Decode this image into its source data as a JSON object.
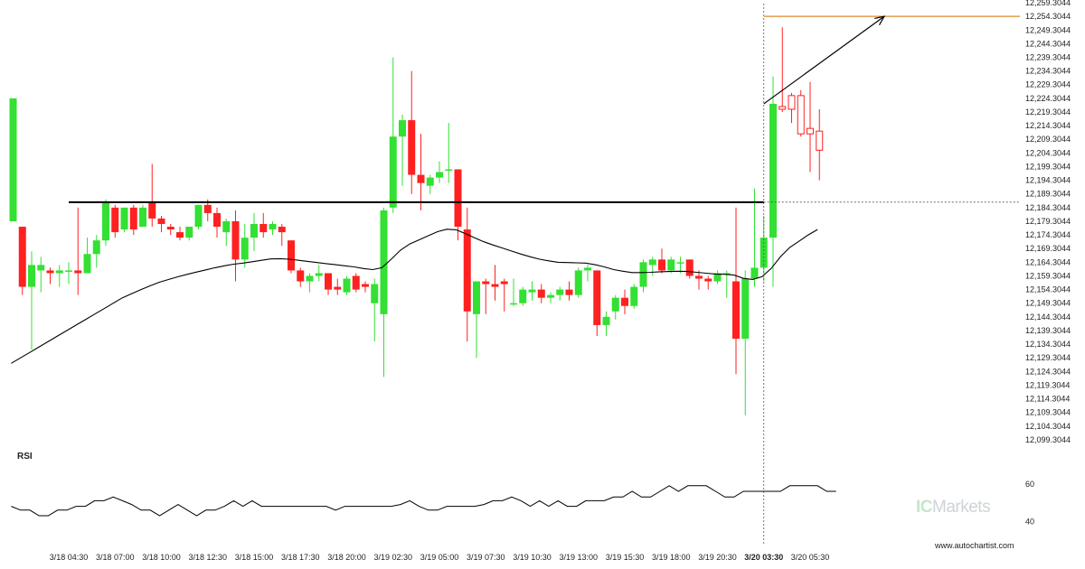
{
  "chart_data": [
    {
      "type": "candlestick",
      "series_name": "",
      "y_ticks": [
        "12,099.3044",
        "12,104.3044",
        "12,109.3044",
        "12,114.3044",
        "12,119.3044",
        "12,124.3044",
        "12,129.3044",
        "12,134.3044",
        "12,139.3044",
        "12,144.3044",
        "12,149.3044",
        "12,154.3044",
        "12,159.3044",
        "12,164.3044",
        "12,169.3044",
        "12,174.3044",
        "12,179.3044",
        "12,184.3044",
        "12,189.3044",
        "12,194.3044",
        "12,199.3044",
        "12,204.3044",
        "12,209.3044",
        "12,214.3044",
        "12,219.3044",
        "12,224.3044",
        "12,229.3044",
        "12,234.3044",
        "12,239.3044",
        "12,244.3044",
        "12,249.3044",
        "12,254.3044",
        "12,259.3044"
      ],
      "ylim": [
        12097.3,
        12260.3
      ],
      "x_ticks": [
        {
          "index": 6,
          "label": "3/18 04:30",
          "bold": false
        },
        {
          "index": 11,
          "label": "3/18 07:00",
          "bold": false
        },
        {
          "index": 16,
          "label": "3/18 10:00",
          "bold": false
        },
        {
          "index": 21,
          "label": "3/18 12:30",
          "bold": false
        },
        {
          "index": 26,
          "label": "3/18 15:00",
          "bold": false
        },
        {
          "index": 31,
          "label": "3/18 17:30",
          "bold": false
        },
        {
          "index": 36,
          "label": "3/18 20:00",
          "bold": false
        },
        {
          "index": 41,
          "label": "3/19 02:30",
          "bold": false
        },
        {
          "index": 46,
          "label": "3/19 05:00",
          "bold": false
        },
        {
          "index": 51,
          "label": "3/19 07:30",
          "bold": false
        },
        {
          "index": 56,
          "label": "3/19 10:30",
          "bold": false
        },
        {
          "index": 61,
          "label": "3/19 13:00",
          "bold": false
        },
        {
          "index": 66,
          "label": "3/19 15:30",
          "bold": false
        },
        {
          "index": 71,
          "label": "3/19 18:00",
          "bold": false
        },
        {
          "index": 76,
          "label": "3/19 20:30",
          "bold": false
        },
        {
          "index": 81,
          "label": "3/20 03:30",
          "bold": true
        },
        {
          "index": 86,
          "label": "3/20 05:30",
          "bold": false
        }
      ],
      "candles": [
        {
          "o": 12179.3,
          "h": 12224.3,
          "l": 12179.3,
          "c": 12224.3,
          "hollow": false
        },
        {
          "o": 12177.3,
          "h": 12177.3,
          "l": 12152.3,
          "c": 12155.3,
          "hollow": false
        },
        {
          "o": 12155.3,
          "h": 12168.3,
          "l": 12132.3,
          "c": 12163.3,
          "hollow": false
        },
        {
          "o": 12161.3,
          "h": 12166.3,
          "l": 12153.3,
          "c": 12163.3,
          "hollow": false
        },
        {
          "o": 12161.3,
          "h": 12162.3,
          "l": 12156.3,
          "c": 12160.3,
          "hollow": false
        },
        {
          "o": 12160.3,
          "h": 12163.3,
          "l": 12155.3,
          "c": 12161.3,
          "hollow": false
        },
        {
          "o": 12161.3,
          "h": 12164.3,
          "l": 12156.3,
          "c": 12161.3,
          "hollow": false
        },
        {
          "o": 12161.3,
          "h": 12184.3,
          "l": 12152.3,
          "c": 12160.3,
          "hollow": false
        },
        {
          "o": 12160.3,
          "h": 12173.3,
          "l": 12160.3,
          "c": 12167.3,
          "hollow": false
        },
        {
          "o": 12167.3,
          "h": 12174.3,
          "l": 12162.3,
          "c": 12172.3,
          "hollow": false
        },
        {
          "o": 12172.3,
          "h": 12187.3,
          "l": 12170.3,
          "c": 12186.3,
          "hollow": false
        },
        {
          "o": 12184.3,
          "h": 12185.3,
          "l": 12173.3,
          "c": 12175.3,
          "hollow": false
        },
        {
          "o": 12176.3,
          "h": 12184.3,
          "l": 12175.3,
          "c": 12184.3,
          "hollow": false
        },
        {
          "o": 12184.3,
          "h": 12185.3,
          "l": 12174.3,
          "c": 12176.3,
          "hollow": false
        },
        {
          "o": 12177.3,
          "h": 12185.3,
          "l": 12177.3,
          "c": 12184.3,
          "hollow": false
        },
        {
          "o": 12186.3,
          "h": 12200.3,
          "l": 12177.3,
          "c": 12180.3,
          "hollow": false
        },
        {
          "o": 12180.3,
          "h": 12181.3,
          "l": 12175.3,
          "c": 12178.3,
          "hollow": false
        },
        {
          "o": 12177.3,
          "h": 12178.3,
          "l": 12174.3,
          "c": 12176.3,
          "hollow": false
        },
        {
          "o": 12175.3,
          "h": 12177.3,
          "l": 12172.3,
          "c": 12173.3,
          "hollow": false
        },
        {
          "o": 12173.3,
          "h": 12176.3,
          "l": 12172.3,
          "c": 12177.3,
          "hollow": false
        },
        {
          "o": 12177.3,
          "h": 12185.3,
          "l": 12176.3,
          "c": 12185.3,
          "hollow": false
        },
        {
          "o": 12185.3,
          "h": 12187.3,
          "l": 12179.3,
          "c": 12182.3,
          "hollow": false
        },
        {
          "o": 12182.3,
          "h": 12184.3,
          "l": 12173.3,
          "c": 12177.3,
          "hollow": false
        },
        {
          "o": 12175.3,
          "h": 12180.3,
          "l": 12170.3,
          "c": 12179.3,
          "hollow": false
        },
        {
          "o": 12179.3,
          "h": 12183.3,
          "l": 12157.3,
          "c": 12165.3,
          "hollow": false
        },
        {
          "o": 12165.3,
          "h": 12178.3,
          "l": 12162.3,
          "c": 12173.3,
          "hollow": false
        },
        {
          "o": 12173.3,
          "h": 12182.3,
          "l": 12168.3,
          "c": 12178.3,
          "hollow": false
        },
        {
          "o": 12178.3,
          "h": 12182.3,
          "l": 12173.3,
          "c": 12175.3,
          "hollow": false
        },
        {
          "o": 12176.3,
          "h": 12179.3,
          "l": 12174.3,
          "c": 12178.3,
          "hollow": false
        },
        {
          "o": 12177.3,
          "h": 12178.3,
          "l": 12170.3,
          "c": 12175.3,
          "hollow": false
        },
        {
          "o": 12172.3,
          "h": 12172.3,
          "l": 12160.3,
          "c": 12161.3,
          "hollow": false
        },
        {
          "o": 12161.3,
          "h": 12162.3,
          "l": 12155.3,
          "c": 12157.3,
          "hollow": false
        },
        {
          "o": 12157.3,
          "h": 12160.3,
          "l": 12153.3,
          "c": 12159.3,
          "hollow": false
        },
        {
          "o": 12159.3,
          "h": 12163.3,
          "l": 12157.3,
          "c": 12160.3,
          "hollow": false
        },
        {
          "o": 12160.3,
          "h": 12160.3,
          "l": 12152.3,
          "c": 12154.3,
          "hollow": false
        },
        {
          "o": 12155.3,
          "h": 12158.3,
          "l": 12152.3,
          "c": 12154.3,
          "hollow": false
        },
        {
          "o": 12153.3,
          "h": 12159.3,
          "l": 12152.3,
          "c": 12158.3,
          "hollow": false
        },
        {
          "o": 12159.3,
          "h": 12160.3,
          "l": 12153.3,
          "c": 12154.3,
          "hollow": false
        },
        {
          "o": 12156.3,
          "h": 12157.3,
          "l": 12153.3,
          "c": 12155.3,
          "hollow": false
        },
        {
          "o": 12149.3,
          "h": 12158.3,
          "l": 12135.3,
          "c": 12156.3,
          "hollow": false
        },
        {
          "o": 12145.3,
          "h": 12184.3,
          "l": 12122.3,
          "c": 12183.3,
          "hollow": false
        },
        {
          "o": 12184.3,
          "h": 12239.3,
          "l": 12182.3,
          "c": 12210.3,
          "hollow": false
        },
        {
          "o": 12210.3,
          "h": 12218.3,
          "l": 12192.3,
          "c": 12216.3,
          "hollow": false
        },
        {
          "o": 12216.3,
          "h": 12234.3,
          "l": 12189.3,
          "c": 12196.3,
          "hollow": false
        },
        {
          "o": 12196.3,
          "h": 12211.3,
          "l": 12183.3,
          "c": 12193.3,
          "hollow": false
        },
        {
          "o": 12192.3,
          "h": 12196.3,
          "l": 12189.3,
          "c": 12195.3,
          "hollow": false
        },
        {
          "o": 12195.3,
          "h": 12201.3,
          "l": 12193.3,
          "c": 12197.3,
          "hollow": false
        },
        {
          "o": 12198.3,
          "h": 12215.3,
          "l": 12193.3,
          "c": 12198.3,
          "hollow": false
        },
        {
          "o": 12198.3,
          "h": 12198.3,
          "l": 12172.3,
          "c": 12177.3,
          "hollow": false
        },
        {
          "o": 12176.3,
          "h": 12184.3,
          "l": 12135.3,
          "c": 12146.3,
          "hollow": false
        },
        {
          "o": 12145.3,
          "h": 12157.3,
          "l": 12129.3,
          "c": 12157.3,
          "hollow": false
        },
        {
          "o": 12157.3,
          "h": 12158.3,
          "l": 12145.3,
          "c": 12156.3,
          "hollow": false
        },
        {
          "o": 12156.3,
          "h": 12163.3,
          "l": 12150.3,
          "c": 12155.3,
          "hollow": false
        },
        {
          "o": 12157.3,
          "h": 12158.3,
          "l": 12146.3,
          "c": 12156.3,
          "hollow": false
        },
        {
          "o": 12149.3,
          "h": 12158.3,
          "l": 12148.3,
          "c": 12149.3,
          "hollow": false
        },
        {
          "o": 12149.3,
          "h": 12155.3,
          "l": 12148.3,
          "c": 12154.3,
          "hollow": false
        },
        {
          "o": 12153.3,
          "h": 12157.3,
          "l": 12150.3,
          "c": 12154.3,
          "hollow": false
        },
        {
          "o": 12154.3,
          "h": 12156.3,
          "l": 12149.3,
          "c": 12151.3,
          "hollow": false
        },
        {
          "o": 12151.3,
          "h": 12153.3,
          "l": 12149.3,
          "c": 12152.3,
          "hollow": false
        },
        {
          "o": 12152.3,
          "h": 12155.3,
          "l": 12150.3,
          "c": 12154.3,
          "hollow": false
        },
        {
          "o": 12154.3,
          "h": 12157.3,
          "l": 12150.3,
          "c": 12152.3,
          "hollow": false
        },
        {
          "o": 12152.3,
          "h": 12162.3,
          "l": 12151.3,
          "c": 12161.3,
          "hollow": false
        },
        {
          "o": 12161.3,
          "h": 12163.3,
          "l": 12157.3,
          "c": 12162.3,
          "hollow": false
        },
        {
          "o": 12161.3,
          "h": 12161.3,
          "l": 12137.3,
          "c": 12141.3,
          "hollow": false
        },
        {
          "o": 12141.3,
          "h": 12146.3,
          "l": 12137.3,
          "c": 12144.3,
          "hollow": false
        },
        {
          "o": 12146.3,
          "h": 12152.3,
          "l": 12143.3,
          "c": 12151.3,
          "hollow": false
        },
        {
          "o": 12151.3,
          "h": 12154.3,
          "l": 12145.3,
          "c": 12148.3,
          "hollow": false
        },
        {
          "o": 12148.3,
          "h": 12156.3,
          "l": 12147.3,
          "c": 12155.3,
          "hollow": false
        },
        {
          "o": 12155.3,
          "h": 12165.3,
          "l": 12153.3,
          "c": 12164.3,
          "hollow": false
        },
        {
          "o": 12163.3,
          "h": 12166.3,
          "l": 12159.3,
          "c": 12165.3,
          "hollow": false
        },
        {
          "o": 12165.3,
          "h": 12169.3,
          "l": 12160.3,
          "c": 12161.3,
          "hollow": false
        },
        {
          "o": 12161.3,
          "h": 12166.3,
          "l": 12160.3,
          "c": 12165.3,
          "hollow": false
        },
        {
          "o": 12164.3,
          "h": 12166.3,
          "l": 12160.3,
          "c": 12164.3,
          "hollow": false
        },
        {
          "o": 12165.3,
          "h": 12165.3,
          "l": 12158.3,
          "c": 12159.3,
          "hollow": false
        },
        {
          "o": 12159.3,
          "h": 12161.3,
          "l": 12154.3,
          "c": 12158.3,
          "hollow": false
        },
        {
          "o": 12158.3,
          "h": 12159.3,
          "l": 12154.3,
          "c": 12157.3,
          "hollow": false
        },
        {
          "o": 12157.3,
          "h": 12161.3,
          "l": 12156.3,
          "c": 12160.3,
          "hollow": false
        },
        {
          "o": 12160.3,
          "h": 12161.3,
          "l": 12151.3,
          "c": 12160.3,
          "hollow": false
        },
        {
          "o": 12157.3,
          "h": 12184.3,
          "l": 12123.3,
          "c": 12136.3,
          "hollow": false
        },
        {
          "o": 12136.3,
          "h": 12161.3,
          "l": 12108.3,
          "c": 12158.3,
          "hollow": false
        },
        {
          "o": 12158.3,
          "h": 12191.3,
          "l": 12155.3,
          "c": 12162.3,
          "hollow": false
        },
        {
          "o": 12162.3,
          "h": 12181.3,
          "l": 12157.3,
          "c": 12173.3,
          "hollow": false
        },
        {
          "o": 12173.3,
          "h": 12232.3,
          "l": 12155.3,
          "c": 12222.3,
          "hollow": false
        },
        {
          "o": 12220.3,
          "h": 12250.3,
          "l": 12219.3,
          "c": 12221.3,
          "hollow": true
        },
        {
          "o": 12220.3,
          "h": 12226.3,
          "l": 12215.3,
          "c": 12225.3,
          "hollow": true
        },
        {
          "o": 12225.3,
          "h": 12227.3,
          "l": 12210.3,
          "c": 12211.3,
          "hollow": true
        },
        {
          "o": 12213.3,
          "h": 12230.3,
          "l": 12197.3,
          "c": 12211.3,
          "hollow": true
        },
        {
          "o": 12212.3,
          "h": 12220.3,
          "l": 12194.3,
          "c": 12205.3,
          "hollow": true
        }
      ],
      "moving_average": [
        12127.3,
        12129.3,
        12131.3,
        12133.3,
        12135.3,
        12137.3,
        12139.3,
        12141.3,
        12143.3,
        12145.3,
        12147.3,
        12149.3,
        12151.3,
        12152.8,
        12154.3,
        12155.7,
        12157.0,
        12158.0,
        12159.0,
        12159.9,
        12160.7,
        12161.5,
        12162.3,
        12163.0,
        12163.6,
        12164.0,
        12164.5,
        12165.0,
        12165.5,
        12165.6,
        12165.4,
        12165.0,
        12164.6,
        12164.2,
        12163.8,
        12163.4,
        12163.0,
        12162.6,
        12162.0,
        12161.6,
        12162.3,
        12165.4,
        12168.7,
        12171.0,
        12172.5,
        12174.0,
        12175.5,
        12176.4,
        12176.2,
        12174.8,
        12173.2,
        12171.8,
        12170.6,
        12169.5,
        12168.4,
        12167.3,
        12166.3,
        12165.4,
        12164.8,
        12164.3,
        12164.2,
        12164.1,
        12164.0,
        12163.4,
        12162.6,
        12161.6,
        12161.0,
        12160.5,
        12160.5,
        12160.6,
        12160.8,
        12160.9,
        12161.0,
        12160.9,
        12160.6,
        12160.3,
        12160.0,
        12159.9,
        12159.6,
        12158.4,
        12158.0,
        12159.0,
        12162.0,
        12166.3,
        12169.7,
        12172.0,
        12174.3,
        12176.3
      ]
    },
    {
      "type": "line",
      "title": "RSI",
      "y_ticks": [
        "60",
        "40"
      ],
      "ylim": [
        30,
        70
      ],
      "values": [
        48,
        46,
        46,
        43,
        43,
        46,
        46,
        48,
        48,
        51,
        51,
        53,
        51,
        49,
        46,
        46,
        43,
        46,
        49,
        46,
        43,
        46,
        46,
        48,
        51,
        48,
        51,
        48,
        48,
        48,
        48,
        48,
        48,
        48,
        48,
        46,
        48,
        48,
        48,
        48,
        48,
        48,
        49,
        51,
        48,
        46,
        46,
        48,
        48,
        48,
        48,
        49,
        51,
        51,
        53,
        51,
        48,
        51,
        48,
        51,
        48,
        48,
        51,
        51,
        51,
        53,
        53,
        56,
        53,
        53,
        56,
        59,
        56,
        59,
        59,
        59,
        56,
        53,
        53,
        56,
        56,
        56,
        56,
        56,
        59,
        59,
        59,
        59,
        56,
        56
      ]
    }
  ],
  "annotations": {
    "support_level": 12186.3,
    "support_start_index": 6,
    "support_end_index": 81,
    "target_level": 12254.3,
    "target_start_index": 81,
    "arrow_from": {
      "index": 81,
      "value": 12222.3
    },
    "arrow_to": {
      "index": 94,
      "value": 12254.3
    },
    "current_index": 81,
    "dashed_level": 12186.3
  },
  "colors": {
    "up": "#33e033",
    "down": "#ff2020",
    "hollow": "#ff2020",
    "ma": "#000000",
    "support": "#000000",
    "target": "#e08a2a",
    "rsi": "#000000",
    "vline": "#555555"
  },
  "watermark": {
    "prefix": "IC",
    "suffix": "Markets"
  },
  "credit": "www.autochartist.com"
}
